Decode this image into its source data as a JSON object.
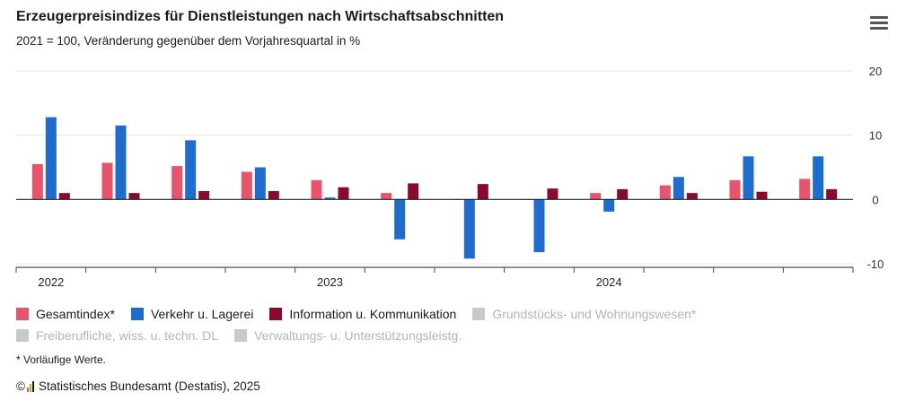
{
  "title": "Erzeugerpreisindizes für Dienstleistungen nach Wirtschaftsabschnitten",
  "subtitle": "2021 = 100, Veränderung gegenüber dem Vorjahresquartal in %",
  "footnote": "* Vorläufige Werte.",
  "credits": {
    "symbol": "©",
    "text": "Statistisches Bundesamt (Destatis), 2025"
  },
  "menu_icon": "hamburger-menu-icon",
  "colors": {
    "gesamt": "#e8546b",
    "verkehr": "#1f6ccf",
    "info": "#8a0a2e",
    "inactive": "#c9c9c9"
  },
  "legend": [
    {
      "label": "Gesamtindex*",
      "color": "#e8546b",
      "active": true
    },
    {
      "label": "Verkehr u. Lagerei",
      "color": "#1f6ccf",
      "active": true
    },
    {
      "label": "Information u. Kommunikation",
      "color": "#8a0a2e",
      "active": true
    },
    {
      "label": "Grundstücks- und Wohnungswesen*",
      "color": "#c9c9c9",
      "active": false
    },
    {
      "label": "Freiberufliche, wiss. u. techn. DL",
      "color": "#c9c9c9",
      "active": false
    },
    {
      "label": "Verwaltungs- u. Unterstützungsleistg.",
      "color": "#c9c9c9",
      "active": false
    }
  ],
  "chart_data": {
    "type": "bar",
    "categories": [
      "2022 Q1",
      "2022 Q2",
      "2022 Q3",
      "2022 Q4",
      "2023 Q1",
      "2023 Q2",
      "2023 Q3",
      "2023 Q4",
      "2024 Q1",
      "2024 Q2",
      "2024 Q3",
      "2024 Q4"
    ],
    "x_tick_labels": [
      "2022",
      "2023",
      "2024"
    ],
    "x_tick_label_category_index": [
      0,
      4,
      8
    ],
    "series": [
      {
        "name": "Gesamtindex*",
        "color": "#e8546b",
        "values": [
          5.5,
          5.7,
          5.2,
          4.3,
          3.0,
          1.0,
          0.0,
          0.0,
          1.0,
          2.2,
          3.0,
          3.2
        ]
      },
      {
        "name": "Verkehr u. Lagerei",
        "color": "#1f6ccf",
        "values": [
          12.8,
          11.5,
          9.2,
          5.0,
          0.3,
          -6.2,
          -9.2,
          -8.2,
          -1.9,
          3.5,
          6.7,
          6.7
        ]
      },
      {
        "name": "Information u. Kommunikation",
        "color": "#8a0a2e",
        "values": [
          1.0,
          1.0,
          1.3,
          1.3,
          1.9,
          2.5,
          2.4,
          1.7,
          1.6,
          1.0,
          1.2,
          1.6
        ]
      }
    ],
    "y_ticks": [
      20,
      10,
      0,
      -10
    ],
    "ylim": [
      -10,
      20
    ],
    "y_axis_position": "right",
    "grid": true
  }
}
